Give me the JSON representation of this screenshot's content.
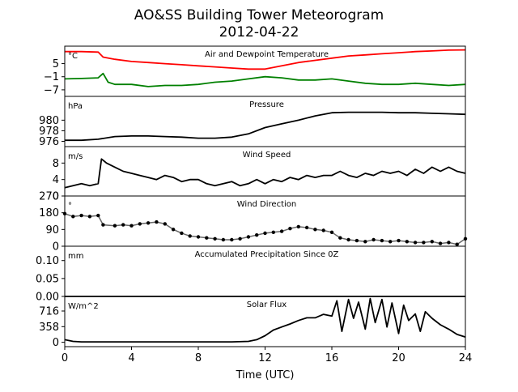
{
  "title": "AO&SS Building Tower Meteorogram",
  "subtitle": "2012-04-22",
  "xlabel": "Time (UTC)",
  "x_ticks": [
    0,
    4,
    8,
    12,
    16,
    20,
    24
  ],
  "xlim": [
    0,
    24
  ],
  "chart_data": [
    {
      "type": "line",
      "title": "Air and Dewpoint Temperature",
      "unit_label": "°C",
      "ylim": [
        -10,
        13
      ],
      "y_ticks": [
        5,
        -1,
        -7
      ],
      "y_tick_labels": [
        "5",
        "−1",
        "−7"
      ],
      "series": [
        {
          "color": "#ff0000",
          "x": [
            0,
            1,
            2,
            2.3,
            3,
            4,
            5,
            6,
            7,
            8,
            9,
            10,
            11,
            12,
            13,
            14,
            15,
            16,
            17,
            18,
            19,
            20,
            21,
            22,
            23,
            24
          ],
          "values": [
            10.5,
            10.5,
            10.3,
            8.0,
            7.0,
            6.0,
            5.5,
            5.0,
            4.5,
            4.0,
            3.5,
            3.0,
            2.5,
            2.5,
            4.0,
            5.5,
            6.5,
            7.5,
            8.5,
            9.0,
            9.5,
            10.0,
            10.5,
            10.8,
            11.2,
            11.3
          ]
        },
        {
          "color": "#008000",
          "x": [
            0,
            1,
            2,
            2.3,
            2.6,
            3,
            4,
            5,
            6,
            7,
            8,
            9,
            10,
            11,
            12,
            13,
            14,
            15,
            16,
            17,
            18,
            19,
            20,
            21,
            22,
            23,
            24
          ],
          "values": [
            -2.0,
            -1.8,
            -1.5,
            0.5,
            -3.5,
            -4.5,
            -4.5,
            -5.5,
            -5.0,
            -5.0,
            -4.5,
            -3.5,
            -3.0,
            -2.0,
            -1.0,
            -1.5,
            -2.5,
            -2.5,
            -2.0,
            -3.0,
            -4.0,
            -4.5,
            -4.5,
            -4.0,
            -4.5,
            -5.0,
            -4.5
          ]
        }
      ]
    },
    {
      "type": "line",
      "title": "Pressure",
      "unit_label": "hPa",
      "ylim": [
        975,
        984.5
      ],
      "y_ticks": [
        980,
        978,
        976
      ],
      "y_tick_labels": [
        "980",
        "978",
        "976"
      ],
      "series": [
        {
          "color": "#000000",
          "x": [
            0,
            1,
            2,
            3,
            4,
            5,
            6,
            7,
            8,
            9,
            10,
            11,
            12,
            13,
            14,
            15,
            16,
            17,
            18,
            19,
            20,
            21,
            22,
            23,
            24
          ],
          "values": [
            976.2,
            976.2,
            976.4,
            976.9,
            977.0,
            977.0,
            976.9,
            976.8,
            976.6,
            976.6,
            976.8,
            977.4,
            978.6,
            979.3,
            980.0,
            980.8,
            981.4,
            981.5,
            981.5,
            981.5,
            981.4,
            981.4,
            981.3,
            981.2,
            981.1
          ]
        }
      ]
    },
    {
      "type": "line",
      "title": "Wind Speed",
      "unit_label": "m/s",
      "ylim": [
        0,
        12
      ],
      "y_ticks": [
        8,
        4,
        0
      ],
      "y_tick_labels": [
        "8",
        "4",
        "0"
      ],
      "series": [
        {
          "color": "#000000",
          "x": [
            0,
            0.5,
            1,
            1.5,
            2,
            2.2,
            2.5,
            3,
            3.5,
            4,
            4.5,
            5,
            5.5,
            6,
            6.5,
            7,
            7.5,
            8,
            8.5,
            9,
            9.5,
            10,
            10.5,
            11,
            11.5,
            12,
            12.5,
            13,
            13.5,
            14,
            14.5,
            15,
            15.5,
            16,
            16.5,
            17,
            17.5,
            18,
            18.5,
            19,
            19.5,
            20,
            20.5,
            21,
            21.5,
            22,
            22.5,
            23,
            23.5,
            24
          ],
          "values": [
            2,
            2.5,
            3,
            2.5,
            3,
            9,
            8,
            7,
            6,
            5.5,
            5,
            4.5,
            4,
            5,
            4.5,
            3.5,
            4,
            4,
            3,
            2.5,
            3,
            3.5,
            2.5,
            3,
            4,
            3,
            4,
            3.5,
            4.5,
            4,
            5,
            4.5,
            5,
            5,
            6,
            5,
            4.5,
            5.5,
            5,
            6,
            5.5,
            6,
            5,
            6.5,
            5.5,
            7,
            6,
            7,
            6,
            5.5
          ]
        }
      ]
    },
    {
      "type": "scatter",
      "title": "Wind Direction",
      "unit_label": "°",
      "ylim": [
        0,
        270
      ],
      "y_ticks": [
        270,
        180,
        90,
        0
      ],
      "y_tick_labels": [
        "270",
        "180",
        "90",
        "0"
      ],
      "series": [
        {
          "color": "#000000",
          "x": [
            0,
            0.5,
            1,
            1.5,
            2,
            2.3,
            3,
            3.5,
            4,
            4.5,
            5,
            5.5,
            6,
            6.5,
            7,
            7.5,
            8,
            8.5,
            9,
            9.5,
            10,
            10.5,
            11,
            11.5,
            12,
            12.5,
            13,
            13.5,
            14,
            14.5,
            15,
            15.5,
            16,
            16.5,
            17,
            17.5,
            18,
            18.5,
            19,
            19.5,
            20,
            20.5,
            21,
            21.5,
            22,
            22.5,
            23,
            23.5,
            24
          ],
          "values": [
            175,
            160,
            165,
            160,
            165,
            115,
            110,
            115,
            110,
            120,
            125,
            130,
            120,
            90,
            70,
            55,
            50,
            45,
            40,
            35,
            35,
            40,
            50,
            60,
            70,
            75,
            80,
            95,
            105,
            100,
            90,
            85,
            75,
            45,
            35,
            30,
            25,
            35,
            30,
            25,
            30,
            25,
            20,
            20,
            25,
            15,
            20,
            10,
            40
          ]
        }
      ]
    },
    {
      "type": "line",
      "title": "Accumulated Precipitation Since 0Z",
      "unit_label": "mm",
      "ylim": [
        0,
        0.14
      ],
      "y_ticks": [
        0.1,
        0.05,
        0.0
      ],
      "y_tick_labels": [
        "0.10",
        "0.05",
        "0.00"
      ],
      "series": [
        {
          "color": "#000000",
          "x": [
            0,
            24
          ],
          "values": [
            0,
            0
          ]
        }
      ]
    },
    {
      "type": "line",
      "title": "Solar Flux",
      "unit_label": "W/m^2",
      "ylim": [
        -100,
        1050
      ],
      "y_ticks": [
        716,
        358,
        0
      ],
      "y_tick_labels": [
        "716",
        "358",
        "0"
      ],
      "series": [
        {
          "color": "#000000",
          "x": [
            0,
            0.5,
            1,
            2,
            4,
            6,
            8,
            10,
            11,
            11.5,
            12,
            12.5,
            13,
            13.5,
            14,
            14.5,
            15,
            15.5,
            16,
            16.3,
            16.6,
            17,
            17.3,
            17.6,
            18,
            18.3,
            18.6,
            19,
            19.3,
            19.6,
            20,
            20.3,
            20.6,
            21,
            21.3,
            21.6,
            22,
            22.5,
            23,
            23.5,
            24
          ],
          "values": [
            60,
            20,
            10,
            10,
            10,
            10,
            10,
            10,
            20,
            60,
            150,
            280,
            350,
            420,
            500,
            560,
            560,
            640,
            600,
            950,
            250,
            980,
            550,
            920,
            300,
            1000,
            450,
            980,
            350,
            900,
            200,
            850,
            500,
            650,
            250,
            700,
            550,
            400,
            300,
            180,
            120
          ]
        }
      ]
    }
  ]
}
